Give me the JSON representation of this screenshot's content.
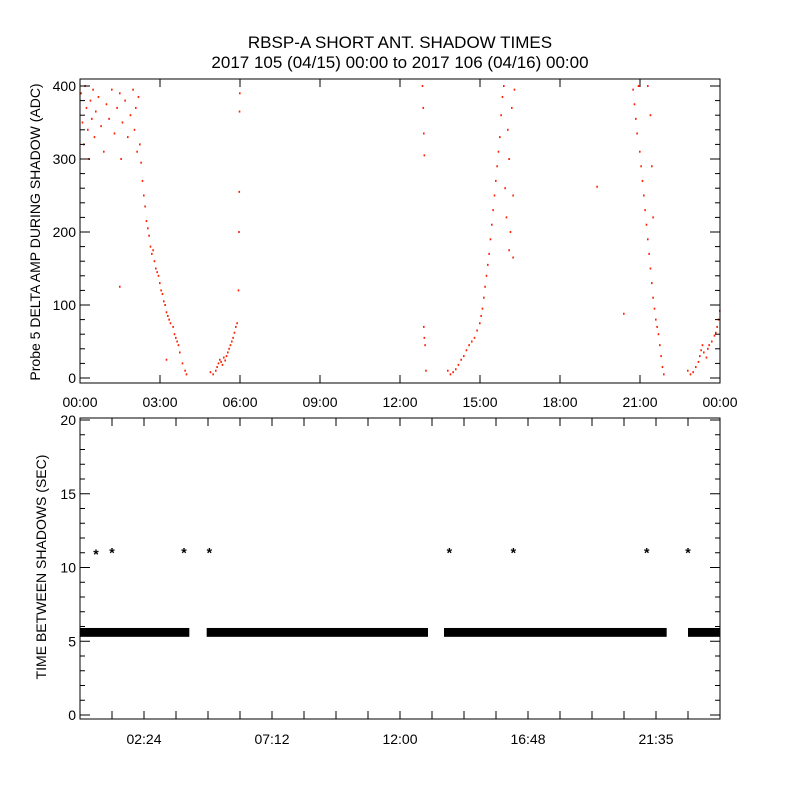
{
  "title": "RBSP-A SHORT ANT. SHADOW TIMES",
  "subtitle": "2017 105 (04/15) 00:00 to 2017 106 (04/16) 00:00",
  "chart_data": [
    {
      "type": "scatter",
      "ylabel": "Probe 5 DELTA AMP DURING SHADOW (ADC)",
      "xlabel": "",
      "xunit": "hours since 2017-04-15 00:00",
      "xlim": [
        0,
        24
      ],
      "ylim": [
        0,
        410
      ],
      "xticks": [
        "00:00",
        "03:00",
        "06:00",
        "09:00",
        "12:00",
        "15:00",
        "18:00",
        "21:00",
        "00:00"
      ],
      "yticks": [
        "0",
        "100",
        "200",
        "300",
        "400"
      ],
      "color": "#ff2000",
      "points": [
        [
          0.05,
          390
        ],
        [
          0.1,
          350
        ],
        [
          0.15,
          320
        ],
        [
          0.2,
          400
        ],
        [
          0.25,
          370
        ],
        [
          0.3,
          340
        ],
        [
          0.35,
          300
        ],
        [
          0.4,
          380
        ],
        [
          0.45,
          355
        ],
        [
          0.5,
          395
        ],
        [
          0.55,
          330
        ],
        [
          0.6,
          365
        ],
        [
          0.7,
          385
        ],
        [
          0.8,
          345
        ],
        [
          0.9,
          310
        ],
        [
          1.0,
          375
        ],
        [
          1.1,
          355
        ],
        [
          1.2,
          395
        ],
        [
          1.3,
          335
        ],
        [
          1.4,
          370
        ],
        [
          1.5,
          390
        ],
        [
          1.55,
          300
        ],
        [
          1.6,
          350
        ],
        [
          1.7,
          380
        ],
        [
          1.8,
          330
        ],
        [
          1.9,
          360
        ],
        [
          2.0,
          395
        ],
        [
          2.05,
          340
        ],
        [
          2.1,
          370
        ],
        [
          2.15,
          310
        ],
        [
          2.2,
          385
        ],
        [
          2.25,
          320
        ],
        [
          2.3,
          295
        ],
        [
          2.35,
          270
        ],
        [
          2.4,
          250
        ],
        [
          2.45,
          235
        ],
        [
          2.5,
          215
        ],
        [
          2.55,
          205
        ],
        [
          2.6,
          195
        ],
        [
          2.65,
          180
        ],
        [
          2.7,
          170
        ],
        [
          2.75,
          175
        ],
        [
          2.8,
          160
        ],
        [
          2.85,
          150
        ],
        [
          2.9,
          145
        ],
        [
          2.95,
          140
        ],
        [
          3.0,
          130
        ],
        [
          3.05,
          120
        ],
        [
          3.1,
          115
        ],
        [
          3.15,
          105
        ],
        [
          3.2,
          100
        ],
        [
          3.25,
          90
        ],
        [
          3.3,
          85
        ],
        [
          3.35,
          80
        ],
        [
          3.4,
          75
        ],
        [
          3.5,
          70
        ],
        [
          3.55,
          60
        ],
        [
          3.6,
          55
        ],
        [
          3.65,
          50
        ],
        [
          3.7,
          45
        ],
        [
          3.75,
          35
        ],
        [
          3.85,
          20
        ],
        [
          3.95,
          10
        ],
        [
          4.0,
          5
        ],
        [
          1.5,
          125
        ],
        [
          3.25,
          25
        ],
        [
          4.9,
          8
        ],
        [
          5.0,
          5
        ],
        [
          5.1,
          10
        ],
        [
          5.15,
          15
        ],
        [
          5.2,
          20
        ],
        [
          5.25,
          25
        ],
        [
          5.3,
          22
        ],
        [
          5.35,
          18
        ],
        [
          5.4,
          28
        ],
        [
          5.45,
          24
        ],
        [
          5.5,
          30
        ],
        [
          5.55,
          35
        ],
        [
          5.6,
          40
        ],
        [
          5.65,
          45
        ],
        [
          5.7,
          50
        ],
        [
          5.75,
          55
        ],
        [
          5.8,
          62
        ],
        [
          5.85,
          70
        ],
        [
          5.9,
          75
        ],
        [
          5.95,
          120
        ],
        [
          5.97,
          200
        ],
        [
          5.98,
          255
        ],
        [
          5.99,
          365
        ],
        [
          6.0,
          390
        ],
        [
          12.85,
          400
        ],
        [
          12.88,
          370
        ],
        [
          12.9,
          335
        ],
        [
          12.92,
          305
        ],
        [
          12.9,
          70
        ],
        [
          12.92,
          55
        ],
        [
          12.95,
          45
        ],
        [
          12.98,
          10
        ],
        [
          13.8,
          10
        ],
        [
          13.9,
          5
        ],
        [
          14.0,
          8
        ],
        [
          14.1,
          12
        ],
        [
          14.2,
          18
        ],
        [
          14.3,
          25
        ],
        [
          14.4,
          30
        ],
        [
          14.5,
          38
        ],
        [
          14.6,
          45
        ],
        [
          14.7,
          50
        ],
        [
          14.8,
          55
        ],
        [
          14.9,
          65
        ],
        [
          15.0,
          75
        ],
        [
          15.05,
          85
        ],
        [
          15.1,
          95
        ],
        [
          15.15,
          110
        ],
        [
          15.2,
          125
        ],
        [
          15.25,
          140
        ],
        [
          15.3,
          155
        ],
        [
          15.35,
          170
        ],
        [
          15.4,
          190
        ],
        [
          15.45,
          210
        ],
        [
          15.5,
          230
        ],
        [
          15.55,
          250
        ],
        [
          15.6,
          270
        ],
        [
          15.65,
          290
        ],
        [
          15.7,
          310
        ],
        [
          15.75,
          330
        ],
        [
          15.8,
          360
        ],
        [
          15.85,
          385
        ],
        [
          15.9,
          400
        ],
        [
          15.95,
          260
        ],
        [
          16.0,
          220
        ],
        [
          16.05,
          340
        ],
        [
          16.1,
          300
        ],
        [
          16.15,
          200
        ],
        [
          16.2,
          370
        ],
        [
          16.25,
          250
        ],
        [
          16.3,
          395
        ],
        [
          16.1,
          175
        ],
        [
          16.25,
          165
        ],
        [
          19.4,
          262
        ],
        [
          20.4,
          88
        ],
        [
          20.75,
          395
        ],
        [
          20.8,
          375
        ],
        [
          20.85,
          355
        ],
        [
          20.9,
          335
        ],
        [
          20.95,
          400
        ],
        [
          21.0,
          310
        ],
        [
          21.05,
          290
        ],
        [
          21.1,
          270
        ],
        [
          21.15,
          250
        ],
        [
          21.2,
          230
        ],
        [
          21.25,
          210
        ],
        [
          21.3,
          190
        ],
        [
          21.35,
          170
        ],
        [
          21.4,
          150
        ],
        [
          21.45,
          130
        ],
        [
          21.5,
          110
        ],
        [
          21.55,
          95
        ],
        [
          21.6,
          80
        ],
        [
          21.65,
          70
        ],
        [
          21.7,
          60
        ],
        [
          21.75,
          45
        ],
        [
          21.8,
          30
        ],
        [
          21.85,
          15
        ],
        [
          21.9,
          5
        ],
        [
          21.3,
          400
        ],
        [
          21.4,
          360
        ],
        [
          21.45,
          290
        ],
        [
          21.5,
          220
        ],
        [
          22.8,
          10
        ],
        [
          22.9,
          5
        ],
        [
          23.0,
          8
        ],
        [
          23.1,
          15
        ],
        [
          23.2,
          22
        ],
        [
          23.25,
          30
        ],
        [
          23.3,
          38
        ],
        [
          23.35,
          45
        ],
        [
          23.4,
          35
        ],
        [
          23.5,
          28
        ],
        [
          23.55,
          40
        ],
        [
          23.6,
          45
        ],
        [
          23.7,
          50
        ],
        [
          23.8,
          58
        ],
        [
          23.85,
          62
        ],
        [
          23.9,
          70
        ],
        [
          23.95,
          80
        ],
        [
          24.0,
          92
        ]
      ]
    },
    {
      "type": "scatter",
      "ylabel": "TIME BETWEEN SHADOWS (SEC)",
      "xlabel": "",
      "xunit": "hours since 2017-04-15 00:00",
      "xlim": [
        0,
        24
      ],
      "ylim": [
        0,
        20
      ],
      "xticks": [
        "02:24",
        "07:12",
        "12:00",
        "16:48",
        "21:35"
      ],
      "yticks": [
        "0",
        "5",
        "10",
        "15",
        "20"
      ],
      "color": "#000000",
      "marker": "asterisk",
      "dense_runs": [
        {
          "x_start": 0.0,
          "x_end": 4.1,
          "y": 5.6
        },
        {
          "x_start": 4.75,
          "x_end": 13.05,
          "y": 5.6
        },
        {
          "x_start": 13.65,
          "x_end": 22.0,
          "y": 5.6
        },
        {
          "x_start": 22.8,
          "x_end": 24.0,
          "y": 5.6
        }
      ],
      "points": [
        [
          0.6,
          11.0
        ],
        [
          1.2,
          11.1
        ],
        [
          3.9,
          11.1
        ],
        [
          4.85,
          11.1
        ],
        [
          13.85,
          11.1
        ],
        [
          16.25,
          11.1
        ],
        [
          21.25,
          11.1
        ],
        [
          22.8,
          11.1
        ]
      ]
    }
  ]
}
